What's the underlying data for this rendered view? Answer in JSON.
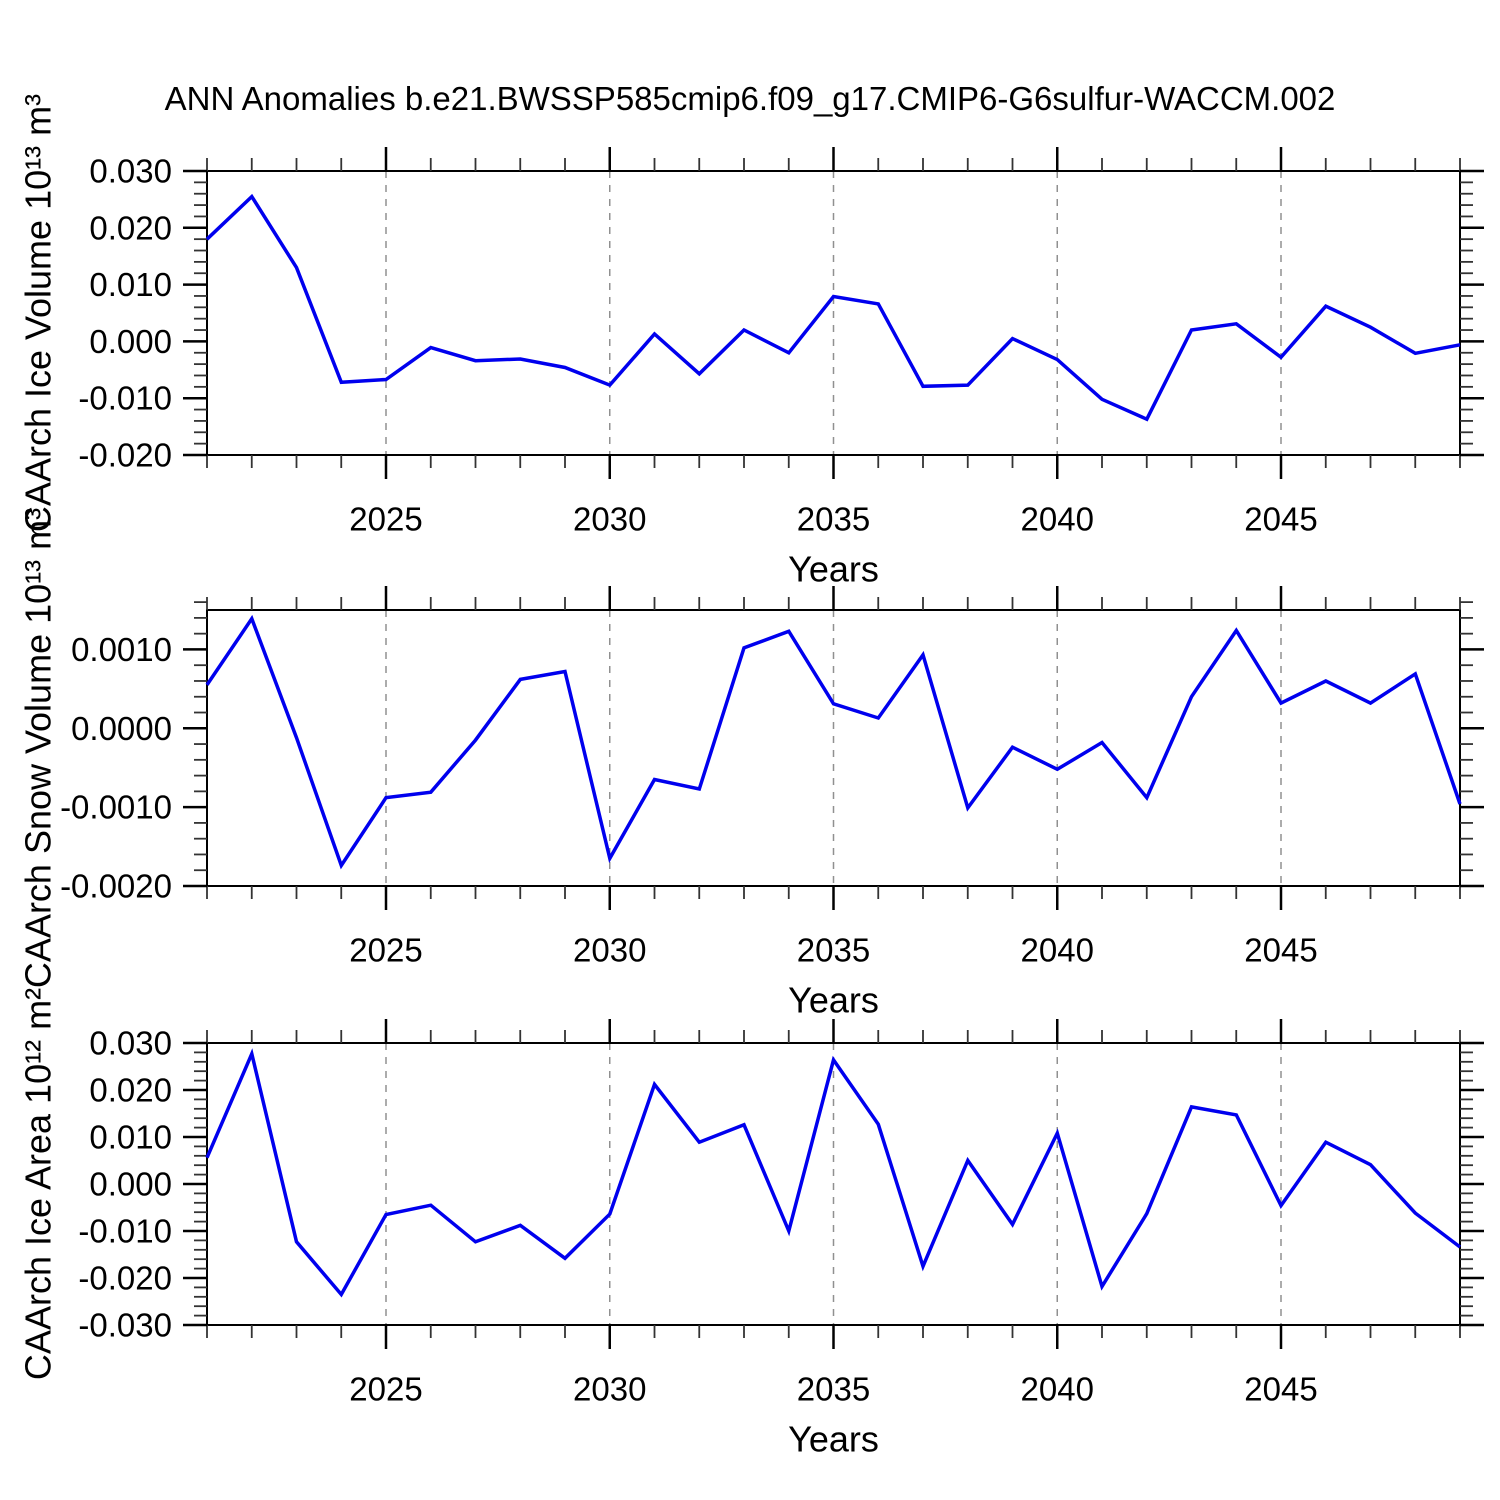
{
  "title": "ANN Anomalies b.e21.BWSSP585cmip6.f09_g17.CMIP6-G6sulfur-WACCM.002",
  "x_axis": {
    "label": "Years",
    "start": 2021,
    "end": 2049,
    "tick_years": [
      2025,
      2030,
      2035,
      2040,
      2045
    ],
    "tick_labels": [
      "2025",
      "2030",
      "2035",
      "2040",
      "2045"
    ]
  },
  "colors": {
    "line": "#0000ee",
    "grid": "#909090",
    "axis": "#000000",
    "minor_tick": "#333333",
    "text": "#000000"
  },
  "chart_data": [
    {
      "id": "ice-volume",
      "type": "line",
      "title": "",
      "ylabel": "CAArch Ice Volume 10¹³ m³",
      "xlabel": "Years",
      "ylim": [
        -0.02,
        0.03
      ],
      "yticks": [
        0.03,
        0.02,
        0.01,
        0.0,
        -0.01,
        -0.02
      ],
      "ytick_labels": [
        "0.030",
        "0.020",
        "0.010",
        "0.000",
        "-0.010",
        "-0.020"
      ],
      "y_minor_step": 0.002,
      "grid": "vertical-dashed",
      "legend": "none",
      "x": [
        2021,
        2022,
        2023,
        2024,
        2025,
        2026,
        2027,
        2028,
        2029,
        2030,
        2031,
        2032,
        2033,
        2034,
        2035,
        2036,
        2037,
        2038,
        2039,
        2040,
        2041,
        2042,
        2043,
        2044,
        2045,
        2046,
        2047,
        2048,
        2049
      ],
      "values": [
        0.018,
        0.0255,
        0.013,
        -0.0072,
        -0.0067,
        -0.0011,
        -0.0034,
        -0.0031,
        -0.0046,
        -0.0077,
        0.0013,
        -0.0057,
        0.002,
        -0.002,
        0.0079,
        0.0066,
        -0.0079,
        -0.0077,
        0.0005,
        -0.0032,
        -0.0102,
        -0.0137,
        0.002,
        0.0031,
        -0.0028,
        0.0062,
        0.0025,
        -0.0021,
        -0.0006
      ]
    },
    {
      "id": "snow-volume",
      "type": "line",
      "title": "",
      "ylabel": "CAArch Snow Volume 10¹³ m³",
      "xlabel": "Years",
      "ylim": [
        -0.002,
        0.0015
      ],
      "yticks": [
        0.001,
        0.0,
        -0.001,
        -0.002
      ],
      "ytick_labels": [
        "0.0010",
        "0.0000",
        "-0.0010",
        "-0.0020"
      ],
      "y_minor_step": 0.0002,
      "grid": "vertical-dashed",
      "legend": "none",
      "x": [
        2021,
        2022,
        2023,
        2024,
        2025,
        2026,
        2027,
        2028,
        2029,
        2030,
        2031,
        2032,
        2033,
        2034,
        2035,
        2036,
        2037,
        2038,
        2039,
        2040,
        2041,
        2042,
        2043,
        2044,
        2045,
        2046,
        2047,
        2048,
        2049
      ],
      "values": [
        0.00055,
        0.00139,
        -0.00012,
        -0.00174,
        -0.00088,
        -0.00081,
        -0.00015,
        0.00062,
        0.00072,
        -0.00165,
        -0.00065,
        -0.00077,
        0.00102,
        0.00123,
        0.00031,
        0.00013,
        0.00093,
        -0.00101,
        -0.00024,
        -0.00052,
        -0.00018,
        -0.00088,
        0.0004,
        0.00124,
        0.00032,
        0.0006,
        0.00032,
        0.00069,
        -0.00096
      ]
    },
    {
      "id": "ice-area",
      "type": "line",
      "title": "",
      "ylabel": "CAArch Ice Area 10¹² m²",
      "xlabel": "Years",
      "ylim": [
        -0.03,
        0.03
      ],
      "yticks": [
        0.03,
        0.02,
        0.01,
        0.0,
        -0.01,
        -0.02,
        -0.03
      ],
      "ytick_labels": [
        "0.030",
        "0.020",
        "0.010",
        "0.000",
        "-0.010",
        "-0.020",
        "-0.030"
      ],
      "y_minor_step": 0.002,
      "grid": "vertical-dashed",
      "legend": "none",
      "x": [
        2021,
        2022,
        2023,
        2024,
        2025,
        2026,
        2027,
        2028,
        2029,
        2030,
        2031,
        2032,
        2033,
        2034,
        2035,
        2036,
        2037,
        2038,
        2039,
        2040,
        2041,
        2042,
        2043,
        2044,
        2045,
        2046,
        2047,
        2048,
        2049
      ],
      "values": [
        0.0056,
        0.0277,
        -0.0123,
        -0.0235,
        -0.0065,
        -0.0045,
        -0.0123,
        -0.0088,
        -0.0158,
        -0.0064,
        0.0212,
        0.0089,
        0.0126,
        -0.01,
        0.0264,
        0.0127,
        -0.0175,
        0.005,
        -0.0086,
        0.0108,
        -0.0218,
        -0.0063,
        0.0164,
        0.0147,
        -0.0046,
        0.0089,
        0.0041,
        -0.0062,
        -0.0134
      ]
    }
  ]
}
